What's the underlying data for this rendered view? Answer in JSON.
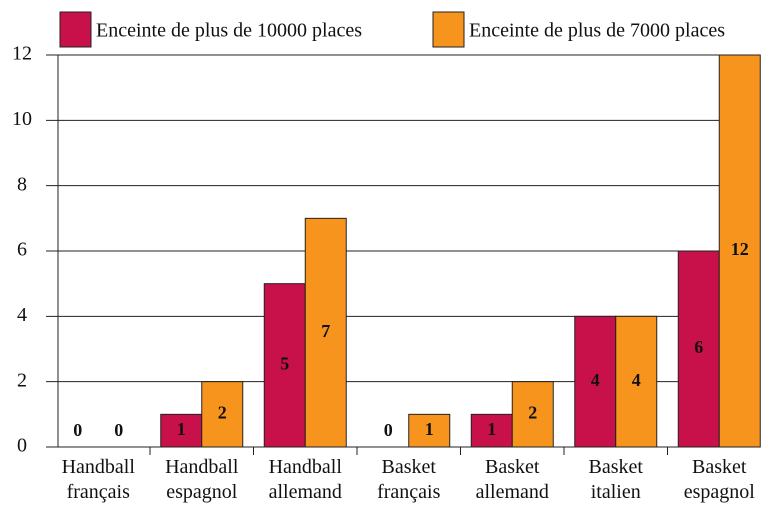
{
  "chart_data": {
    "type": "bar",
    "categories": [
      "Handball français",
      "Handball espagnol",
      "Handball allemand",
      "Basket français",
      "Basket allemand",
      "Basket italien",
      "Basket espagnol"
    ],
    "series": [
      {
        "name": "Enceinte de plus de 10000 places",
        "color": "#c8104a",
        "values": [
          0,
          1,
          5,
          0,
          1,
          4,
          6
        ]
      },
      {
        "name": "Enceinte de plus de 7000 places",
        "color": "#f7941d",
        "values": [
          0,
          2,
          7,
          1,
          2,
          4,
          12
        ]
      }
    ],
    "ylim": [
      0,
      12
    ],
    "yticks": [
      0,
      2,
      4,
      6,
      8,
      10,
      12
    ],
    "grid": true,
    "legend": "top"
  }
}
